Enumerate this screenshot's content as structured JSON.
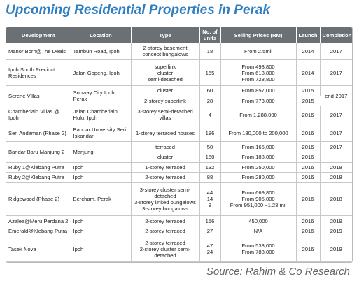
{
  "header": {
    "title": "Upcoming Residential Properties in Perak"
  },
  "table": {
    "columns": {
      "development": "Development",
      "location": "Location",
      "type": "Type",
      "units": "No. of units",
      "price": "Selling Prices (RM)",
      "launch": "Launch",
      "completion": "Completion"
    },
    "rows": [
      {
        "development": "Manor Born@The Deals",
        "location": "Tambun Road, Ipoh",
        "parts": [
          {
            "type": "2-storey basement concept bungalows",
            "units": 18,
            "price": "From 2.5mil",
            "launch": 2014,
            "completion": 2017
          }
        ]
      },
      {
        "development": "Ipoh South Precinct Residences",
        "location": "Jalan Gopeng, Ipoh",
        "parts": [
          {
            "type": [
              "superlink",
              "cluster",
              "semi-detached"
            ],
            "units": 155,
            "price": [
              "From 493,800",
              "From 618,800",
              "From 728,800"
            ],
            "launch": 2014,
            "completion": 2017
          }
        ]
      },
      {
        "development": "Serene Villas",
        "location": "Sunway City Ipoh, Perak",
        "completion": "end-2017",
        "parts": [
          {
            "type": "cluster",
            "units": 60,
            "price": "From 857,000",
            "launch": 2015
          },
          {
            "type": "2-storey superlink",
            "units": 28,
            "price": "From 773,000",
            "launch": 2015
          }
        ]
      },
      {
        "development": "Chamberlain Villas @ Ipoh",
        "location": "Jalan Chamberlain Hulu, Ipoh",
        "parts": [
          {
            "type": "3-storey semi-detached villas",
            "units": 4,
            "price": "From 1,288,000",
            "launch": 2016,
            "completion": 2017
          }
        ]
      },
      {
        "development": "Seri Andaman (Phase 2)",
        "location": "Bandar University Seri Iskandar",
        "parts": [
          {
            "type": "1-storey terraced houses",
            "units": 186,
            "price": "From 180,000 to 200,000",
            "launch": 2016,
            "completion": 2017
          }
        ]
      },
      {
        "development": "Bandar Baru Manjung 2",
        "location": "Manjung",
        "parts": [
          {
            "type": "terraced",
            "units": 50,
            "price": "From 165,000",
            "launch": 2016,
            "completion": 2017
          },
          {
            "type": "cluster",
            "units": 150,
            "price": "From 188,000",
            "launch": 2016
          }
        ]
      },
      {
        "development": "Ruby 1@Klebang Putra",
        "location": "Ipoh",
        "parts": [
          {
            "type": "1-storey terraced",
            "units": 132,
            "price": "From 250,000",
            "launch": 2016,
            "completion": 2018
          }
        ]
      },
      {
        "development": "Ruby 2@Klebang Putra",
        "location": "Ipoh",
        "parts": [
          {
            "type": "2-storey terraced",
            "units": 88,
            "price": "From 280,000",
            "launch": 2016,
            "completion": 2018
          }
        ]
      },
      {
        "development": "Ridgewood (Phase 2)",
        "location": "Bercham, Perak",
        "parts": [
          {
            "type": [
              "3-storey cluster semi-detached",
              "3-storey linked bungalows",
              "3-storey bungalows"
            ],
            "units": [
              44,
              14,
              8
            ],
            "price": [
              "From 669,800",
              "From 905,000",
              "From 951,000 ~1.23 mil"
            ],
            "launch": 2016,
            "completion": 2018
          }
        ]
      },
      {
        "development": "Azalea@Meru Perdana 2",
        "location": "Ipoh",
        "parts": [
          {
            "type": "2-storey terraced",
            "units": 156,
            "price": "450,000",
            "launch": 2016,
            "completion": 2019
          }
        ]
      },
      {
        "development": "Emerald@Klebang Putra",
        "location": "Ipoh",
        "parts": [
          {
            "type": "2-storey terraced",
            "units": 27,
            "price": "N/A",
            "launch": 2016,
            "completion": 2019
          }
        ]
      },
      {
        "development": "Tasek Nova",
        "location": "Ipoh",
        "parts": [
          {
            "type": [
              "2-storey terraced",
              "2-storey cluster semi-detached"
            ],
            "units": [
              47,
              24
            ],
            "price": [
              "From 538,000",
              "From 788,000"
            ],
            "launch": 2016,
            "completion": 2019
          }
        ]
      }
    ]
  },
  "source": "Source: Rahim & Co Research"
}
